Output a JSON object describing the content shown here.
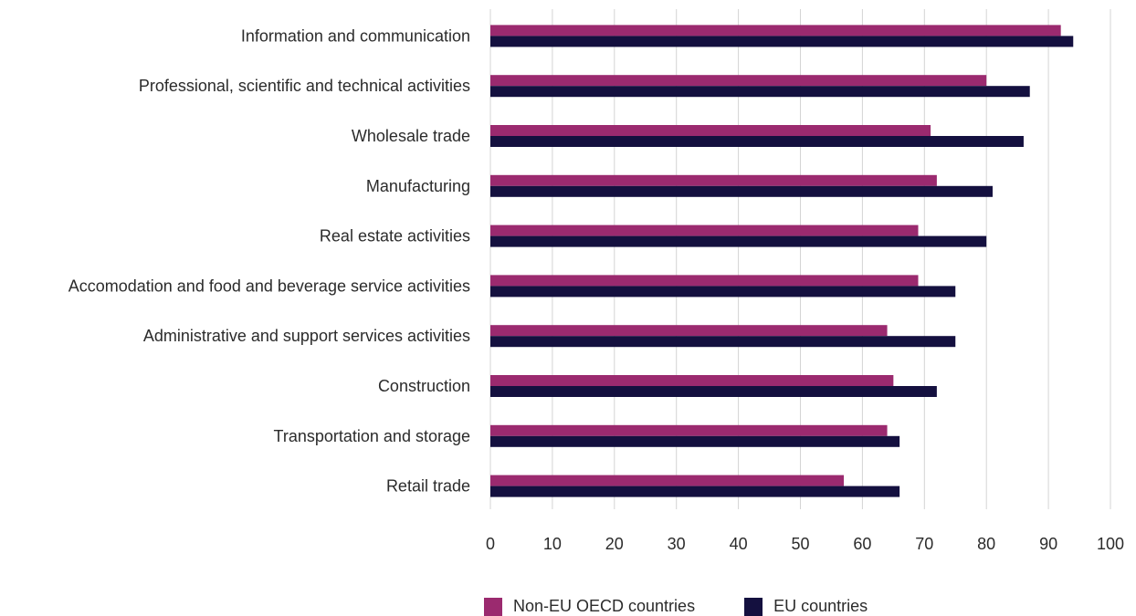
{
  "chart_data": {
    "type": "bar",
    "orientation": "horizontal",
    "categories": [
      "Information and communication",
      "Professional, scientific and technical activities",
      "Wholesale trade",
      "Manufacturing",
      "Real estate activities",
      "Accomodation and food and beverage service activities",
      "Administrative and support services activities",
      "Construction",
      "Transportation and storage",
      "Retail trade"
    ],
    "series": [
      {
        "name": "Non-EU OECD countries",
        "color": "#9b2a6f",
        "values": [
          92,
          80,
          71,
          72,
          69,
          69,
          64,
          65,
          64,
          57
        ]
      },
      {
        "name": "EU countries",
        "color": "#14103f",
        "values": [
          94,
          87,
          86,
          81,
          80,
          75,
          75,
          72,
          66,
          66
        ]
      }
    ],
    "xlim": [
      0,
      100
    ],
    "xticks": [
      "0",
      "10",
      "20",
      "30",
      "40",
      "50",
      "60",
      "70",
      "80",
      "90",
      "100"
    ],
    "grid": "vertical",
    "legend_position": "bottom",
    "title": "",
    "xlabel": "",
    "ylabel": ""
  }
}
